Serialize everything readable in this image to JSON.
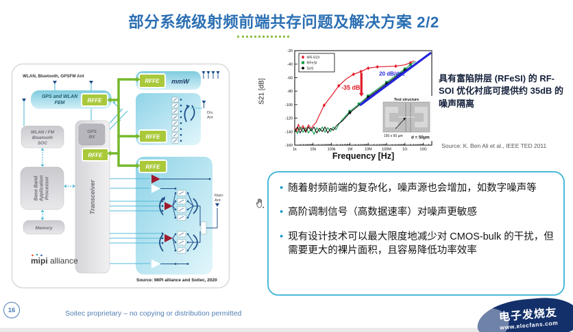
{
  "slide": {
    "title": "部分系统级射频前端共存问题及解决方案 2/2",
    "footer": "Soitec proprietary – no copying or distribution permitted",
    "page_number": "16",
    "accent_blue": "#2b6fb3",
    "accent_green": "#8dbf47"
  },
  "diagram": {
    "ant_label": "WLAN, Bluetooth, GPSFM Ant",
    "fem": [
      "GPS and WLAN",
      "FEM"
    ],
    "rffe": "RFFE",
    "mmw": "mmW",
    "gps_rx": [
      "GPS",
      "RX"
    ],
    "soc": [
      "WLAN / FM",
      "Bluetooth",
      "SOC"
    ],
    "baseband": [
      "Base Band",
      "Application",
      "Processor"
    ],
    "memory": "Memory",
    "transceiver": "Transceiver",
    "div_ant": [
      "Div.",
      "Ant"
    ],
    "main_ant": [
      "Main",
      "Ant"
    ],
    "logo_mipi": "mipi",
    "logo_alliance": "alliance",
    "source": "Source: MIPI alliance and Soitec, 2020",
    "rffe_green": "#a9c93a",
    "bus_green": "#76b82c"
  },
  "note": {
    "text": "具有富陷阱层 (RFeSI) 的 RF-SOI 优化衬底可提供约 35dB 的噪声隔离",
    "source": "Source: K. Ben Ali et al., IEEE TED 2011"
  },
  "bullets": [
    "随着射频前端的复杂化，噪声源也会增加，如数字噪声等",
    "高阶调制信号（高数据速率）对噪声更敏感",
    "现有设计技术可以最大限度地减少对 CMOS-bulk 的干扰，但需要更大的裸片面积，且容易降低功率效率"
  ],
  "chart_data": {
    "type": "line",
    "xlabel": "Frequency [Hz]",
    "ylabel": "S21 [dB]",
    "x_scale": "log",
    "x_ticks": [
      "1k",
      "10k",
      "100k",
      "1M",
      "10M",
      "100M",
      "1G",
      "10G"
    ],
    "x_tick_exponents": [
      3,
      4,
      5,
      6,
      7,
      8,
      9,
      10
    ],
    "ylim": [
      -160,
      -20
    ],
    "y_ticks": [
      -20,
      -40,
      -60,
      -80,
      -100,
      -120,
      -140,
      -160
    ],
    "legend_position": "top-left",
    "grid": false,
    "series": [
      {
        "name": "HR-SOI",
        "color": "#e11926",
        "marker": "diamond",
        "width": 1.2,
        "points": [
          [
            3.0,
            -134
          ],
          [
            3.1,
            -140
          ],
          [
            3.2,
            -129
          ],
          [
            3.3,
            -137
          ],
          [
            3.45,
            -131
          ],
          [
            3.6,
            -139
          ],
          [
            3.75,
            -130
          ],
          [
            3.9,
            -136
          ],
          [
            4.0,
            -131
          ],
          [
            4.15,
            -127
          ],
          [
            4.3,
            -118
          ],
          [
            4.6,
            -101
          ],
          [
            5.0,
            -87
          ],
          [
            5.4,
            -72
          ],
          [
            5.8,
            -62
          ],
          [
            6.2,
            -55
          ],
          [
            6.6,
            -51
          ],
          [
            7.0,
            -46
          ],
          [
            7.5,
            -44
          ],
          [
            8.0,
            -43.5
          ],
          [
            8.5,
            -43
          ],
          [
            9.0,
            -41
          ],
          [
            9.3,
            -38
          ],
          [
            9.5,
            -35
          ]
        ],
        "marker_points": [
          [
            4.6,
            -101
          ],
          [
            5.4,
            -72
          ],
          [
            6.2,
            -55
          ],
          [
            6.6,
            -51
          ],
          [
            7.0,
            -46
          ],
          [
            7.5,
            -44
          ],
          [
            8.5,
            -43
          ],
          [
            9.3,
            -38
          ]
        ]
      },
      {
        "name": "RFeSI",
        "color": "#0a9a48",
        "marker": "square",
        "width": 1.1,
        "points": [
          [
            3.0,
            -137
          ],
          [
            3.15,
            -143
          ],
          [
            3.3,
            -133
          ],
          [
            3.45,
            -141
          ],
          [
            3.6,
            -134
          ],
          [
            3.75,
            -142
          ],
          [
            3.9,
            -135
          ],
          [
            4.05,
            -144
          ],
          [
            4.2,
            -134
          ],
          [
            4.35,
            -140
          ],
          [
            4.5,
            -133
          ],
          [
            4.65,
            -141
          ],
          [
            4.8,
            -134
          ],
          [
            4.95,
            -140
          ],
          [
            5.1,
            -133
          ],
          [
            5.25,
            -137
          ],
          [
            5.4,
            -129
          ],
          [
            5.6,
            -122
          ],
          [
            6.0,
            -110
          ],
          [
            6.5,
            -99
          ],
          [
            7.0,
            -87
          ],
          [
            7.5,
            -77
          ],
          [
            8.0,
            -67
          ],
          [
            8.5,
            -57
          ],
          [
            9.0,
            -47
          ],
          [
            9.3,
            -41
          ],
          [
            9.6,
            -36
          ]
        ],
        "marker_points": [
          [
            6.0,
            -110
          ],
          [
            6.5,
            -99
          ],
          [
            7.0,
            -87
          ],
          [
            8.0,
            -67
          ],
          [
            9.0,
            -47
          ],
          [
            9.3,
            -41
          ]
        ]
      },
      {
        "name": "SoS",
        "color": "#111111",
        "marker": "circle",
        "width": 1.1,
        "points": [
          [
            3.0,
            -140
          ],
          [
            3.15,
            -133
          ],
          [
            3.3,
            -142
          ],
          [
            3.45,
            -134
          ],
          [
            3.6,
            -141
          ],
          [
            3.75,
            -133
          ],
          [
            3.9,
            -139
          ],
          [
            4.05,
            -133
          ],
          [
            4.2,
            -142
          ],
          [
            4.35,
            -135
          ],
          [
            4.5,
            -140
          ],
          [
            4.65,
            -133
          ],
          [
            4.8,
            -142
          ],
          [
            4.95,
            -135
          ],
          [
            5.1,
            -138
          ],
          [
            5.25,
            -132
          ],
          [
            5.4,
            -128
          ],
          [
            5.6,
            -124
          ],
          [
            6.0,
            -112
          ],
          [
            6.5,
            -101
          ],
          [
            7.0,
            -89
          ],
          [
            7.5,
            -79
          ],
          [
            8.0,
            -69
          ],
          [
            8.5,
            -59
          ],
          [
            9.0,
            -49
          ],
          [
            9.3,
            -44
          ],
          [
            9.65,
            -39
          ]
        ],
        "marker_points": [
          [
            6.0,
            -112
          ],
          [
            7.0,
            -89
          ],
          [
            8.0,
            -69
          ],
          [
            9.0,
            -49
          ]
        ]
      },
      {
        "name": "20 dB/dec slope",
        "color": "#2222dd",
        "marker": "none",
        "width": 3.2,
        "points": [
          [
            6.55,
            -101
          ],
          [
            10.42,
            -23
          ]
        ]
      }
    ],
    "annotations": {
      "drop_label": {
        "text": "-35 dB",
        "color": "#e11926",
        "x": 6.05,
        "y": -78
      },
      "drop_arrow": {
        "x": 6.63,
        "from": -53,
        "to": -88,
        "color": "#e11926"
      },
      "slope_label": {
        "text": "20 dB/dec",
        "color": "#2222dd",
        "x": 8.3,
        "y": -57
      },
      "inset_title": "Test structure",
      "inset_dim": "150 x 50 µm",
      "inset_d": "d = 50µm"
    }
  },
  "watermark": {
    "line1": "电子发烧友",
    "line2": "www.elecfans.com",
    "bg": "#14306b"
  }
}
